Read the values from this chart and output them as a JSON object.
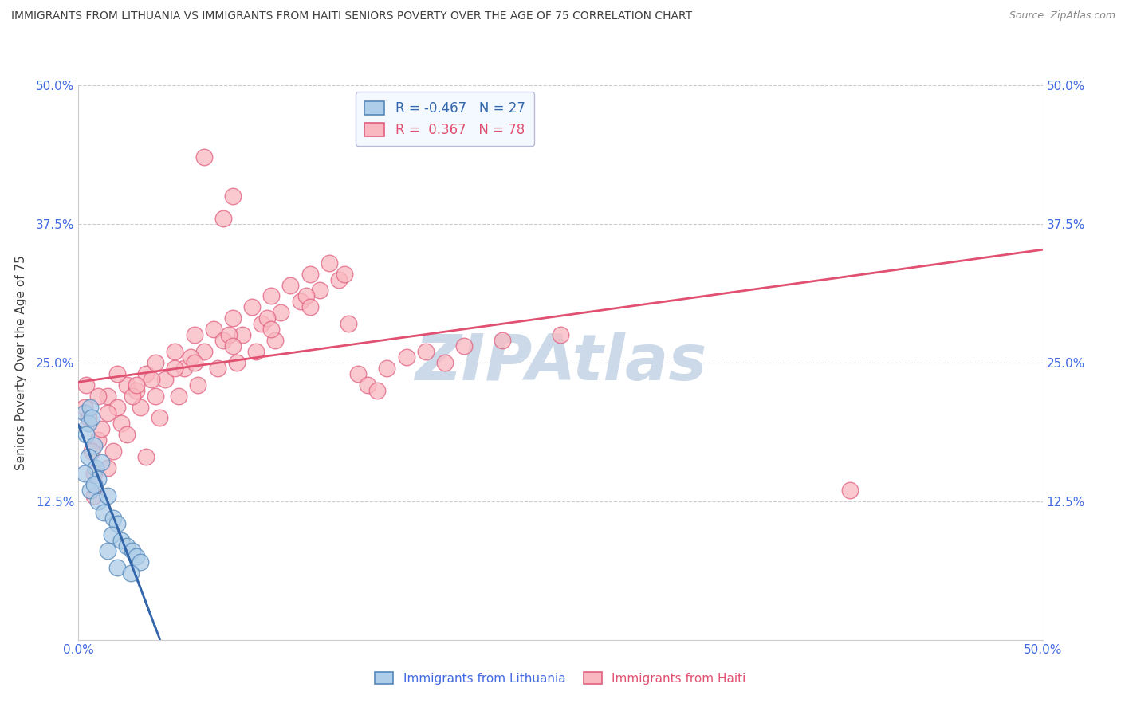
{
  "title": "IMMIGRANTS FROM LITHUANIA VS IMMIGRANTS FROM HAITI SENIORS POVERTY OVER THE AGE OF 75 CORRELATION CHART",
  "source": "Source: ZipAtlas.com",
  "ylabel": "Seniors Poverty Over the Age of 75",
  "y_tick_values": [
    0,
    12.5,
    25.0,
    37.5,
    50.0
  ],
  "y_tick_labels": [
    "",
    "12.5%",
    "25.0%",
    "37.5%",
    "50.0%"
  ],
  "x_range": [
    0,
    50
  ],
  "y_range": [
    0,
    50
  ],
  "legend_lithuania_R": -0.467,
  "legend_lithuania_N": 27,
  "legend_haiti_R": 0.367,
  "legend_haiti_N": 78,
  "lith_color": "#aecde8",
  "lith_edge": "#5588bb",
  "lith_line": "#3366aa",
  "haiti_color": "#f9b8c0",
  "haiti_edge": "#e06080",
  "haiti_line": "#e05070",
  "watermark": "ZIPAtlas",
  "watermark_color": "#ccd9e8",
  "background_color": "#ffffff",
  "grid_color": "#cccccc",
  "title_color": "#404040",
  "axis_label_color": "#4169e1",
  "source_color": "#888888",
  "legend_bg": "#f0f8ff",
  "legend_edge": "#aaaacc",
  "lithuania_dots": [
    [
      0.3,
      20.5
    ],
    [
      0.5,
      19.5
    ],
    [
      0.4,
      18.5
    ],
    [
      0.6,
      21.0
    ],
    [
      0.7,
      20.0
    ],
    [
      0.8,
      17.5
    ],
    [
      0.5,
      16.5
    ],
    [
      0.9,
      15.5
    ],
    [
      1.0,
      14.5
    ],
    [
      0.3,
      15.0
    ],
    [
      0.6,
      13.5
    ],
    [
      1.2,
      16.0
    ],
    [
      0.8,
      14.0
    ],
    [
      1.0,
      12.5
    ],
    [
      1.5,
      13.0
    ],
    [
      1.3,
      11.5
    ],
    [
      1.8,
      11.0
    ],
    [
      2.0,
      10.5
    ],
    [
      1.7,
      9.5
    ],
    [
      2.2,
      9.0
    ],
    [
      2.5,
      8.5
    ],
    [
      2.8,
      8.0
    ],
    [
      3.0,
      7.5
    ],
    [
      3.2,
      7.0
    ],
    [
      1.5,
      8.0
    ],
    [
      2.0,
      6.5
    ],
    [
      2.7,
      6.0
    ]
  ],
  "haiti_dots": [
    [
      0.5,
      20.0
    ],
    [
      1.0,
      18.0
    ],
    [
      1.5,
      22.0
    ],
    [
      0.8,
      15.0
    ],
    [
      1.2,
      19.0
    ],
    [
      2.0,
      21.0
    ],
    [
      1.8,
      17.0
    ],
    [
      2.5,
      23.0
    ],
    [
      2.2,
      19.5
    ],
    [
      3.0,
      22.5
    ],
    [
      3.5,
      24.0
    ],
    [
      3.2,
      21.0
    ],
    [
      4.0,
      25.0
    ],
    [
      4.5,
      23.5
    ],
    [
      4.2,
      20.0
    ],
    [
      5.0,
      26.0
    ],
    [
      5.5,
      24.5
    ],
    [
      5.2,
      22.0
    ],
    [
      6.0,
      27.5
    ],
    [
      6.5,
      26.0
    ],
    [
      6.2,
      23.0
    ],
    [
      7.0,
      28.0
    ],
    [
      7.5,
      27.0
    ],
    [
      7.2,
      24.5
    ],
    [
      8.0,
      29.0
    ],
    [
      8.5,
      27.5
    ],
    [
      8.2,
      25.0
    ],
    [
      9.0,
      30.0
    ],
    [
      9.5,
      28.5
    ],
    [
      9.2,
      26.0
    ],
    [
      10.0,
      31.0
    ],
    [
      10.5,
      29.5
    ],
    [
      10.2,
      27.0
    ],
    [
      11.0,
      32.0
    ],
    [
      11.5,
      30.5
    ],
    [
      12.0,
      33.0
    ],
    [
      12.5,
      31.5
    ],
    [
      13.0,
      34.0
    ],
    [
      13.5,
      32.5
    ],
    [
      14.0,
      28.5
    ],
    [
      14.5,
      24.0
    ],
    [
      15.0,
      23.0
    ],
    [
      15.5,
      22.5
    ],
    [
      16.0,
      24.5
    ],
    [
      17.0,
      25.5
    ],
    [
      18.0,
      26.0
    ],
    [
      19.0,
      25.0
    ],
    [
      20.0,
      26.5
    ],
    [
      22.0,
      27.0
    ],
    [
      25.0,
      27.5
    ],
    [
      0.4,
      23.0
    ],
    [
      0.7,
      17.0
    ],
    [
      1.5,
      20.5
    ],
    [
      2.8,
      22.0
    ],
    [
      3.8,
      23.5
    ],
    [
      5.8,
      25.5
    ],
    [
      7.8,
      27.5
    ],
    [
      9.8,
      29.0
    ],
    [
      11.8,
      31.0
    ],
    [
      13.8,
      33.0
    ],
    [
      0.3,
      21.0
    ],
    [
      1.0,
      22.0
    ],
    [
      2.0,
      24.0
    ],
    [
      3.0,
      23.0
    ],
    [
      4.0,
      22.0
    ],
    [
      5.0,
      24.5
    ],
    [
      6.0,
      25.0
    ],
    [
      8.0,
      26.5
    ],
    [
      10.0,
      28.0
    ],
    [
      12.0,
      30.0
    ],
    [
      7.5,
      38.0
    ],
    [
      8.0,
      40.0
    ],
    [
      6.5,
      43.5
    ],
    [
      40.0,
      13.5
    ],
    [
      0.8,
      13.0
    ],
    [
      1.5,
      15.5
    ],
    [
      2.5,
      18.5
    ],
    [
      3.5,
      16.5
    ]
  ]
}
